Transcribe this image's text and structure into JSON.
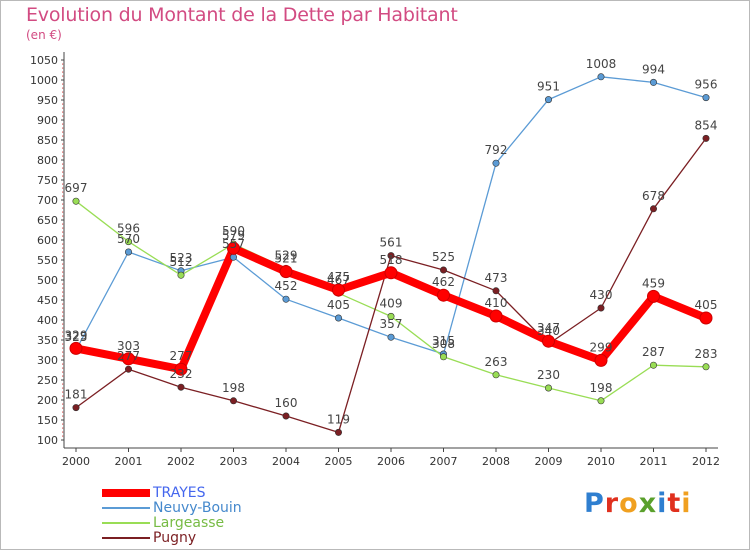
{
  "title": "Evolution du Montant de la Dette par Habitant",
  "subtitle": "(en €)",
  "brand": "Proxiti",
  "chart_data": {
    "type": "line",
    "x": [
      "2000",
      "2001",
      "2002",
      "2003",
      "2004",
      "2005",
      "2006",
      "2007",
      "2008",
      "2009",
      "2010",
      "2011",
      "2012"
    ],
    "ylim": [
      100,
      1050
    ],
    "yticks": [
      100,
      150,
      200,
      250,
      300,
      350,
      400,
      450,
      500,
      550,
      600,
      650,
      700,
      750,
      800,
      850,
      900,
      950,
      1000,
      1050
    ],
    "grid": false,
    "legend_position": "bottom-left",
    "series": [
      {
        "name": "TRAYES",
        "color": "#ff0000",
        "values": [
          329,
          303,
          277,
          579,
          521,
          475,
          518,
          462,
          410,
          347,
          299,
          459,
          405
        ]
      },
      {
        "name": "Neuvy-Bouin",
        "color": "#5b9bd5",
        "values": [
          325,
          570,
          523,
          557,
          452,
          405,
          357,
          315,
          792,
          951,
          1008,
          994,
          956
        ]
      },
      {
        "name": "Largeasse",
        "color": "#99dd55",
        "values": [
          697,
          596,
          512,
          590,
          529,
          467,
          409,
          308,
          263,
          230,
          198,
          287,
          283
        ]
      },
      {
        "name": "Pugny",
        "color": "#7b1f23",
        "values": [
          181,
          277,
          232,
          198,
          160,
          119,
          561,
          525,
          473,
          340,
          430,
          678,
          854
        ]
      }
    ]
  }
}
